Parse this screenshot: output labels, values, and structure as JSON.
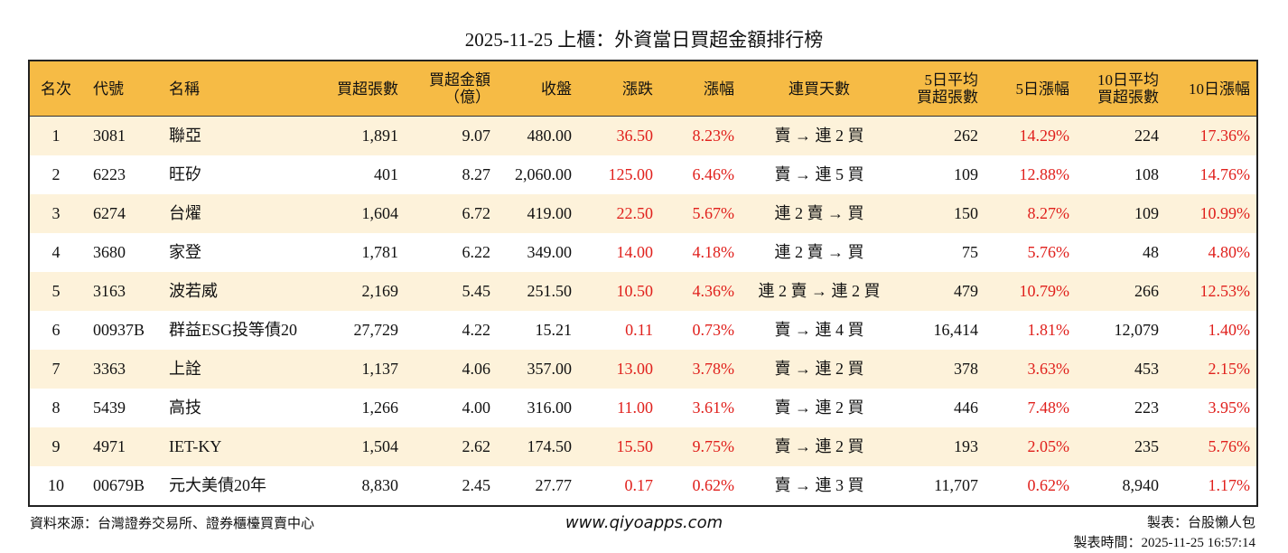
{
  "title": "2025-11-25 上櫃：外資當日買超金額排行榜",
  "table": {
    "header": [
      [
        "名次"
      ],
      [
        "代號"
      ],
      [
        "名稱"
      ],
      [
        "買超張數"
      ],
      [
        "買超金額",
        "（億）"
      ],
      [
        "收盤"
      ],
      [
        "漲跌"
      ],
      [
        "漲幅"
      ],
      [
        "連買天數"
      ],
      [
        "5日平均",
        "買超張數"
      ],
      [
        "5日漲幅"
      ],
      [
        "10日平均",
        "買超張數"
      ],
      [
        "10日漲幅"
      ]
    ],
    "rows": [
      [
        "1",
        "3081",
        "聯亞",
        "1,891",
        "9.07",
        "480.00",
        "36.50",
        "8.23%",
        "賣 → 連 2 買",
        "262",
        "14.29%",
        "224",
        "17.36%"
      ],
      [
        "2",
        "6223",
        "旺矽",
        "401",
        "8.27",
        "2,060.00",
        "125.00",
        "6.46%",
        "賣 → 連 5 買",
        "109",
        "12.88%",
        "108",
        "14.76%"
      ],
      [
        "3",
        "6274",
        "台燿",
        "1,604",
        "6.72",
        "419.00",
        "22.50",
        "5.67%",
        "連 2 賣 → 買",
        "150",
        "8.27%",
        "109",
        "10.99%"
      ],
      [
        "4",
        "3680",
        "家登",
        "1,781",
        "6.22",
        "349.00",
        "14.00",
        "4.18%",
        "連 2 賣 → 買",
        "75",
        "5.76%",
        "48",
        "4.80%"
      ],
      [
        "5",
        "3163",
        "波若威",
        "2,169",
        "5.45",
        "251.50",
        "10.50",
        "4.36%",
        "連 2 賣 → 連 2 買",
        "479",
        "10.79%",
        "266",
        "12.53%"
      ],
      [
        "6",
        "00937B",
        "群益ESG投等債20",
        "27,729",
        "4.22",
        "15.21",
        "0.11",
        "0.73%",
        "賣 → 連 4 買",
        "16,414",
        "1.81%",
        "12,079",
        "1.40%"
      ],
      [
        "7",
        "3363",
        "上詮",
        "1,137",
        "4.06",
        "357.00",
        "13.00",
        "3.78%",
        "賣 → 連 2 買",
        "378",
        "3.63%",
        "453",
        "2.15%"
      ],
      [
        "8",
        "5439",
        "高技",
        "1,266",
        "4.00",
        "316.00",
        "11.00",
        "3.61%",
        "賣 → 連 2 買",
        "446",
        "7.48%",
        "223",
        "3.95%"
      ],
      [
        "9",
        "4971",
        "IET-KY",
        "1,504",
        "2.62",
        "174.50",
        "15.50",
        "9.75%",
        "賣 → 連 2 買",
        "193",
        "2.05%",
        "235",
        "5.76%"
      ],
      [
        "10",
        "00679B",
        "元大美債20年",
        "8,830",
        "2.45",
        "27.77",
        "0.17",
        "0.62%",
        "賣 → 連 3 買",
        "11,707",
        "0.62%",
        "8,940",
        "1.17%"
      ]
    ]
  },
  "footer": {
    "source": "資料來源：台灣證券交易所、證券櫃檯買賣中心",
    "website": "www.qiyoapps.com",
    "maker": "製表：台股懶人包",
    "time": "製表時間：2025-11-25 16:57:14"
  }
}
